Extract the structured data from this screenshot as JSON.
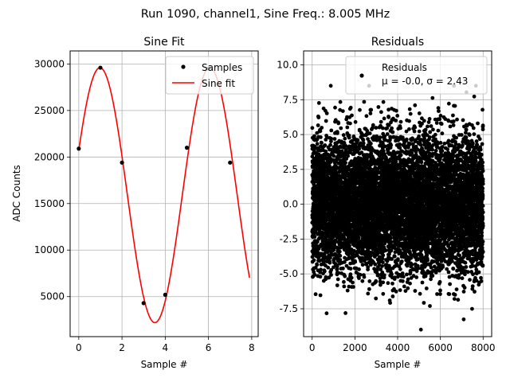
{
  "figure": {
    "suptitle": "Run 1090, channel1, Sine Freq.: 8.005 MHz"
  },
  "chart_data": [
    {
      "type": "line",
      "title": "Sine Fit",
      "xlabel": "Sample #",
      "ylabel": "ADC Counts",
      "xlim": [
        -0.4,
        8.3
      ],
      "ylim": [
        700,
        31400
      ],
      "xticks": [
        0,
        2,
        4,
        6,
        8
      ],
      "yticks": [
        5000,
        10000,
        15000,
        20000,
        25000,
        30000
      ],
      "grid": true,
      "legend_position": "top-right",
      "series": [
        {
          "name": "Samples",
          "kind": "scatter",
          "color": "#000000",
          "x": [
            0,
            1,
            2,
            3,
            4,
            5,
            6,
            7
          ],
          "y": [
            20900,
            29600,
            19400,
            4300,
            5200,
            21000,
            29500,
            19400
          ]
        },
        {
          "name": "Sine fit",
          "kind": "line",
          "color": "#ff0000",
          "model": {
            "amplitude": 13700,
            "offset": 15900,
            "period_samples": 5.08,
            "peak_sample": 0.98
          },
          "x_range": [
            0,
            7.9
          ]
        }
      ]
    },
    {
      "type": "scatter",
      "title": "Residuals",
      "xlabel": "Sample #",
      "xlim": [
        -400,
        8400
      ],
      "ylim": [
        -9.5,
        11
      ],
      "xticks": [
        0,
        2000,
        4000,
        6000,
        8000
      ],
      "yticks": [
        -7.5,
        -5.0,
        -2.5,
        0.0,
        2.5,
        5.0,
        7.5,
        10.0
      ],
      "grid": true,
      "legend_position": "top-right",
      "series": [
        {
          "name": "Residuals",
          "legend_stats": "μ = -0.0, σ = 2.43",
          "color": "#000000",
          "n_points": 8000,
          "mean": 0.0,
          "sigma": 2.43
        }
      ]
    }
  ]
}
